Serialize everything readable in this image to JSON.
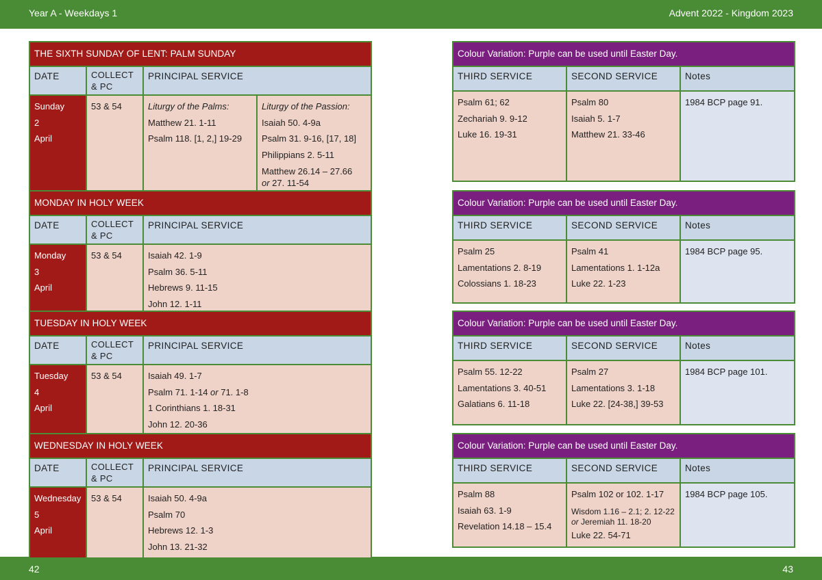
{
  "header": {
    "left": "Year A - Weekdays 1",
    "right": "Advent  2022 - Kingdom 2023"
  },
  "footer": {
    "left_page": "42",
    "right_page": "43"
  },
  "colors": {
    "band_green": "#4a8c35",
    "title_red": "#a11a17",
    "title_purple": "#7a1f7f",
    "header_blue": "#c8d6e5",
    "cell_pink": "#f0d3c8",
    "notes_blue": "#dde4f0"
  },
  "left_headers": {
    "date": "DATE",
    "collect_1": "COLLECT",
    "collect_2": "& PC",
    "principal": "PRINCIPAL SERVICE"
  },
  "right_headers": {
    "third": "THIRD SERVICE",
    "second": "SECOND SERVICE",
    "notes": "Notes"
  },
  "days": [
    {
      "title": "THE SIXTH SUNDAY OF LENT: PALM SUNDAY",
      "date": [
        "Sunday",
        "2",
        "April"
      ],
      "collect": "53 & 54",
      "principal_a": {
        "heading": "Liturgy of the Palms:",
        "readings": [
          "Matthew 21. 1-11",
          "Psalm 118. [1, 2,] 19-29"
        ]
      },
      "principal_b": {
        "heading": "Liturgy of the Passion:",
        "readings": [
          "Isaiah 50. 4-9a",
          "Psalm 31. 9-16, [17, 18]",
          "Philippians 2. 5-11",
          "Matthew 26.14 – 27.66"
        ],
        "alt_or": "or",
        "alt_reading": " 27. 11-54"
      },
      "right": {
        "title": "Colour Variation: Purple can be used until Easter Day.",
        "third": [
          "Psalm 61; 62",
          "Zechariah 9. 9-12",
          "Luke 16. 19-31"
        ],
        "second": [
          "Psalm 80",
          "Isaiah 5. 1-7",
          "Matthew 21. 33-46"
        ],
        "notes": "1984 BCP page 91."
      }
    },
    {
      "title": "MONDAY IN HOLY WEEK",
      "date": [
        "Monday",
        "3",
        "April"
      ],
      "collect": "53 & 54",
      "principal": [
        "Isaiah 42. 1-9",
        "Psalm 36. 5-11",
        "Hebrews 9. 11-15",
        "John 12. 1-11"
      ],
      "right": {
        "title": "Colour Variation: Purple can be used until Easter Day.",
        "third": [
          "Psalm 25",
          "Lamentations 2. 8-19",
          "Colossians 1. 18-23"
        ],
        "second": [
          "Psalm 41",
          "Lamentations 1. 1-12a",
          "Luke 22. 1-23"
        ],
        "notes": "1984 BCP page 95."
      }
    },
    {
      "title": "TUESDAY IN HOLY WEEK",
      "date": [
        "Tuesday",
        "4",
        "April"
      ],
      "collect": "53 & 54",
      "principal": [
        "Isaiah 49. 1-7",
        "1 Corinthians 1. 18-31",
        "John 12. 20-36"
      ],
      "psalm_a": "Psalm 71. 1-14 ",
      "psalm_or": "or",
      "psalm_b": "  71. 1-8",
      "right": {
        "title": "Colour Variation: Purple can be used until Easter Day.",
        "third": [
          "Psalm 55. 12-22",
          "Lamentations 3. 40-51",
          "Galatians 6. 11-18"
        ],
        "second": [
          "Psalm 27",
          "Lamentations 3. 1-18",
          "Luke 22. [24-38,] 39-53"
        ],
        "notes": "1984 BCP page 101."
      }
    },
    {
      "title": "WEDNESDAY IN HOLY WEEK",
      "date": [
        "Wednesday",
        "5",
        "April"
      ],
      "collect": "53 & 54",
      "principal": [
        "Isaiah 50. 4-9a",
        "Psalm 70",
        "Hebrews 12. 1-3",
        "John 13. 21-32"
      ],
      "right": {
        "title": "Colour Variation: Purple can be used until Easter Day.",
        "third": [
          "Psalm 88",
          "Isaiah 63. 1-9",
          "Revelation 14.18 – 15.4"
        ],
        "second_1": "Psalm 102 or  102. 1-17",
        "second_2a": "Wisdom 1.16 – 2.1; 2. 12-22",
        "second_2b_or": "or",
        "second_2b": " Jeremiah 11. 18-20",
        "second_3": "Luke 22. 54-71",
        "notes": "1984 BCP page 105."
      }
    }
  ]
}
